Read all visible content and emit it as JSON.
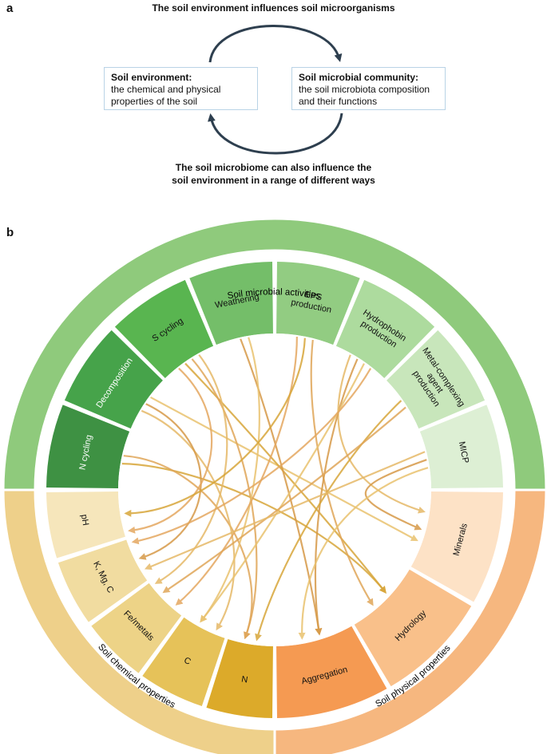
{
  "panel_a": {
    "letter": "a",
    "top_caption": "The soil environment influences soil microorganisms",
    "left_box": {
      "title": "Soil environment:",
      "lines": [
        "the chemical and physical",
        "properties of the soil"
      ]
    },
    "right_box": {
      "title": "Soil microbial community:",
      "lines": [
        "the soil microbiota composition",
        "and their functions"
      ]
    },
    "bottom_caption_lines": [
      "The soil microbiome can also influence the",
      "soil environment in a range of different ways"
    ],
    "arrow_color": "#2e3f4f"
  },
  "panel_b": {
    "letter": "b",
    "outer_ring": [
      {
        "label": "Soil microbial activities",
        "color": "#8fca7c"
      },
      {
        "label": "Soil physical properties",
        "color": "#f6b77f"
      },
      {
        "label": "Soil chemical properties",
        "color": "#eed08a"
      }
    ],
    "activities": [
      {
        "label": "N cycling",
        "color": "#3e9143",
        "text_color": "#ffffff"
      },
      {
        "label": "Decomposition",
        "color": "#46a34a",
        "text_color": "#ffffff"
      },
      {
        "label": "S cycling",
        "color": "#59b550",
        "text_color": "#111111"
      },
      {
        "label": "Weathering",
        "color": "#74be69",
        "text_color": "#111111"
      },
      {
        "label": "EPS production",
        "color": "#92cc82",
        "text_color": "#111111"
      },
      {
        "label": "Hydrophobin production",
        "color": "#addb9e",
        "text_color": "#111111"
      },
      {
        "label": "Metal-complexing agent production",
        "color": "#c8e6bb",
        "text_color": "#111111"
      },
      {
        "label": "MICP",
        "color": "#ddefd4",
        "text_color": "#111111"
      }
    ],
    "physical": [
      {
        "label": "Minerals",
        "color": "#fde2c6",
        "text_color": "#111111"
      },
      {
        "label": "Hydrology",
        "color": "#f9c08a",
        "text_color": "#111111"
      },
      {
        "label": "Aggregation",
        "color": "#f59a52",
        "text_color": "#111111"
      }
    ],
    "chemical": [
      {
        "label": "N",
        "color": "#dcaa2a",
        "text_color": "#111111"
      },
      {
        "label": "C",
        "color": "#e6c259",
        "text_color": "#111111"
      },
      {
        "label": "Fe/metals",
        "color": "#edd387",
        "text_color": "#111111"
      },
      {
        "label": "K, Mg, C",
        "color": "#f1dca0",
        "text_color": "#111111"
      },
      {
        "label": "pH",
        "color": "#f6e6bb",
        "text_color": "#111111"
      }
    ]
  }
}
